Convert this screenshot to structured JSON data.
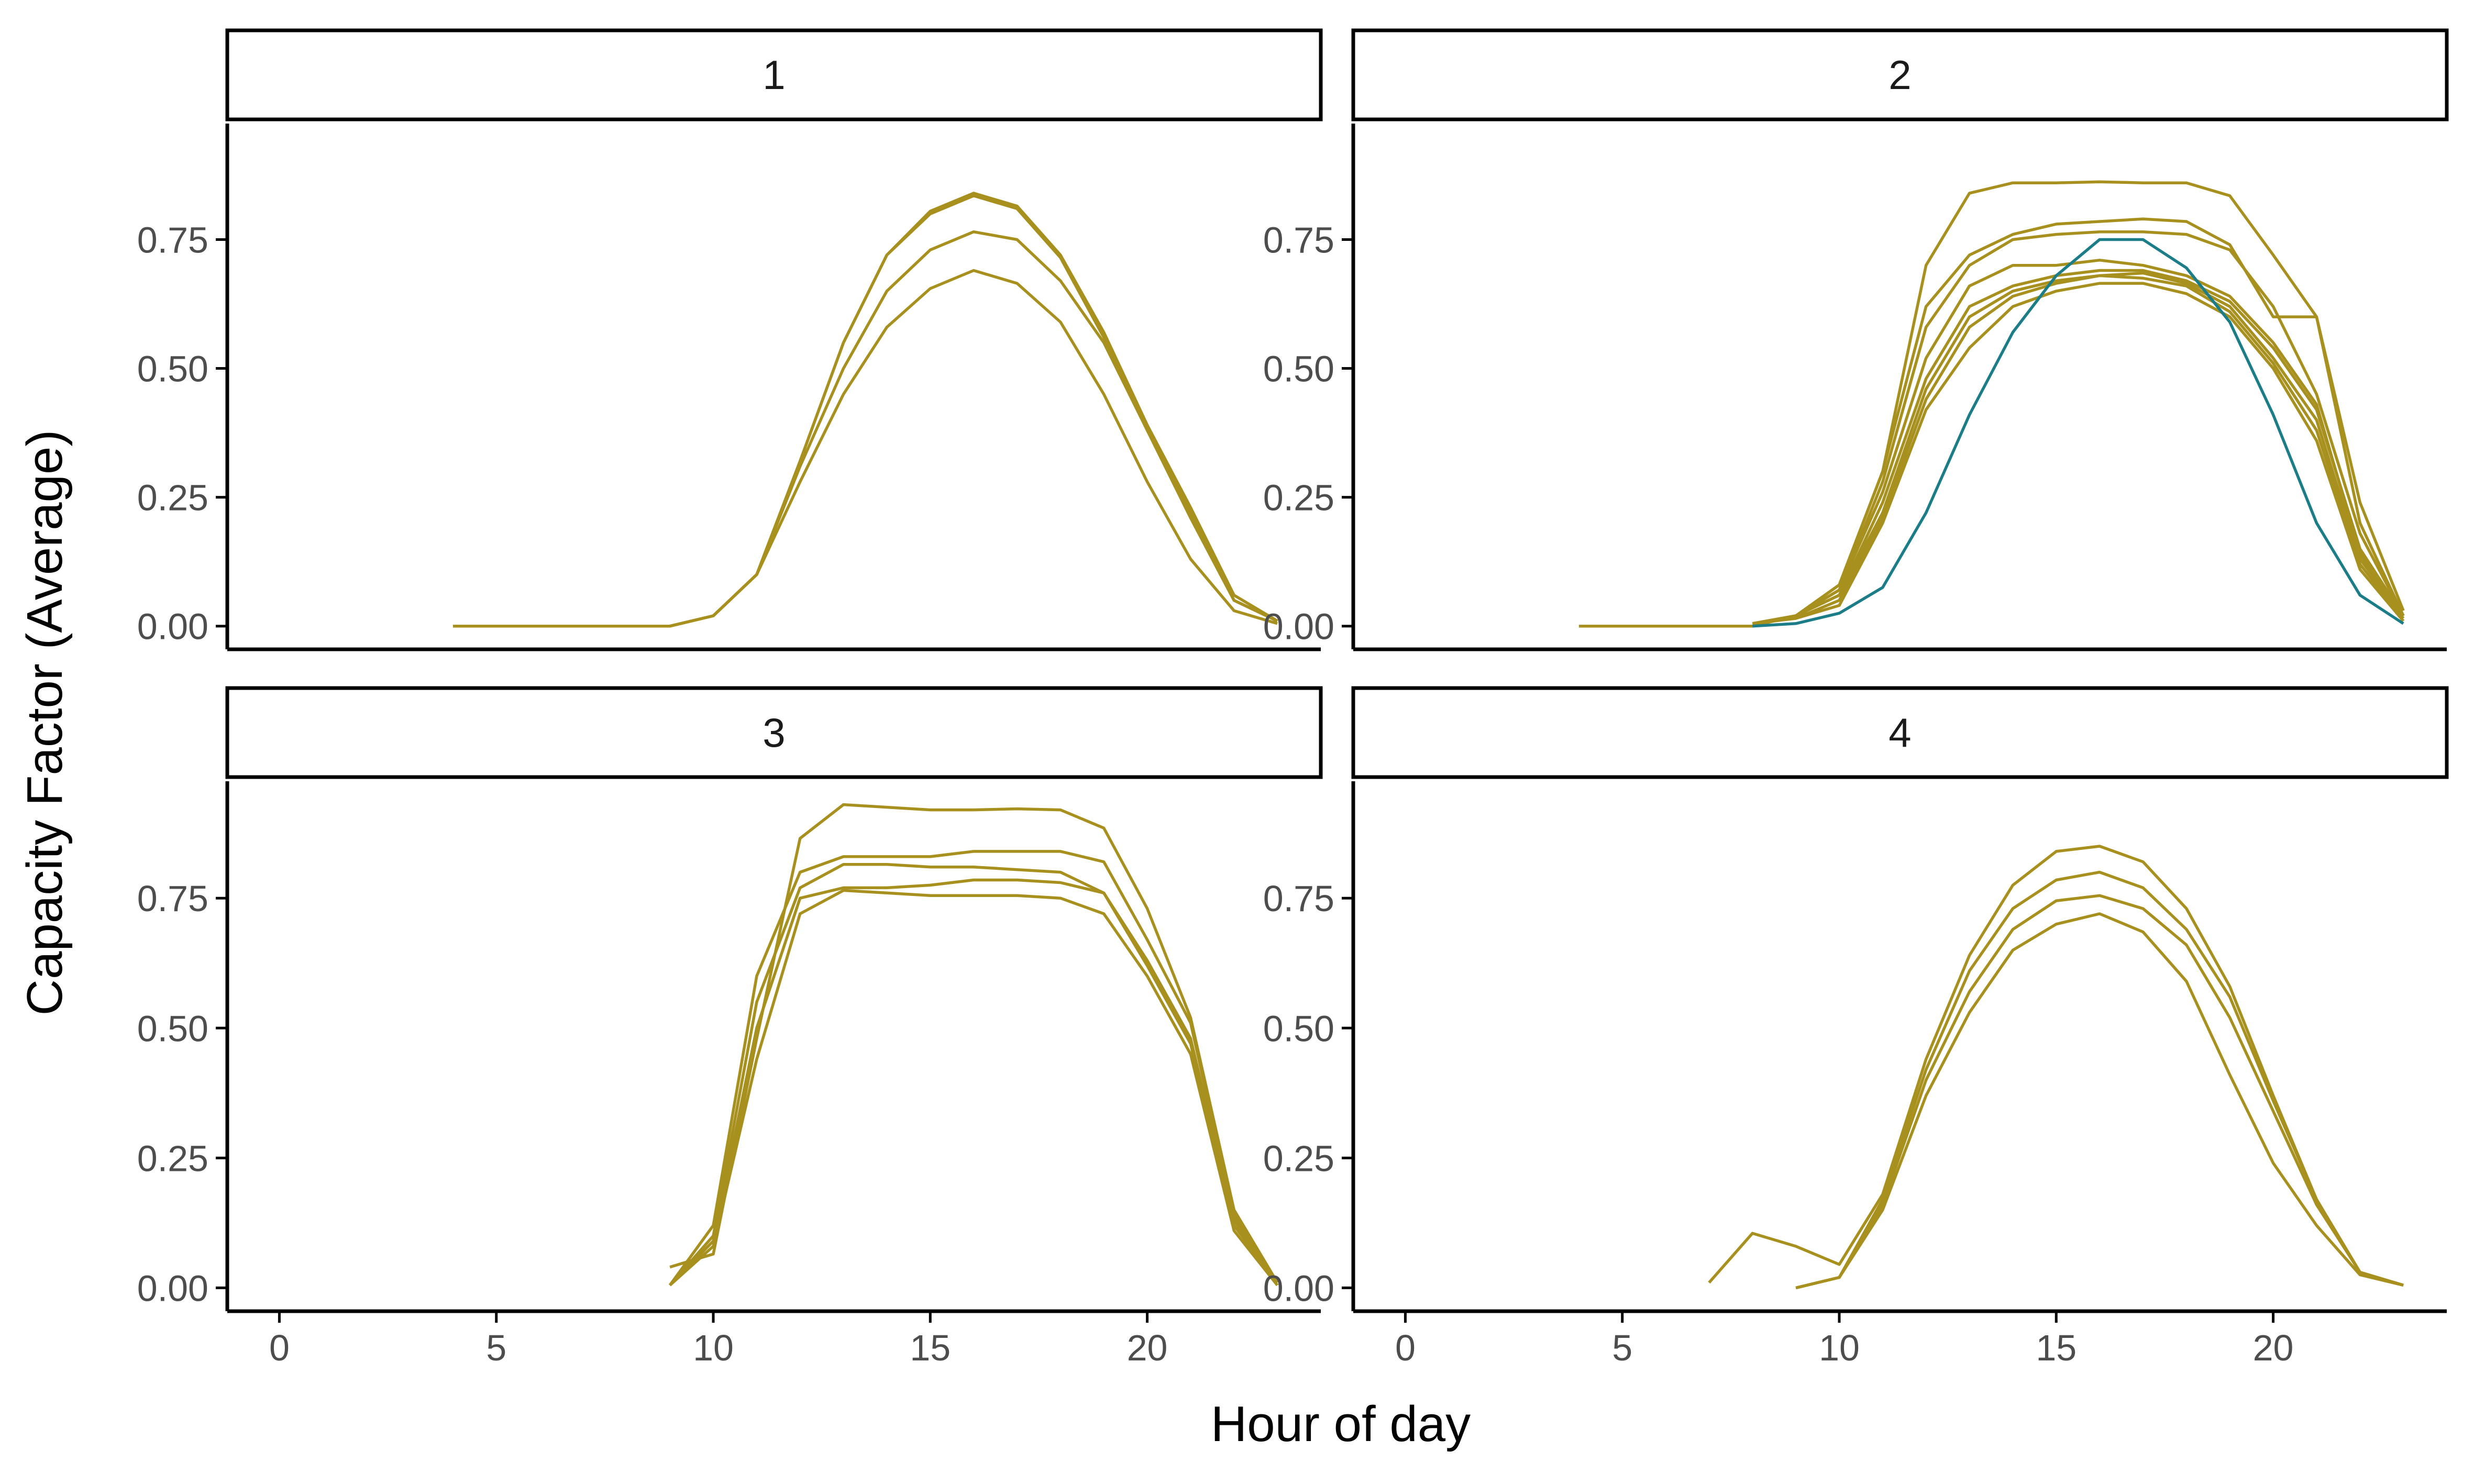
{
  "chart_data": {
    "type": "line",
    "xlabel": "Hour of day",
    "ylabel": "Capacity Factor (Average)",
    "xlim": [
      -1.2,
      24
    ],
    "ylim": [
      -0.045,
      0.975
    ],
    "x_ticks": [
      0,
      5,
      10,
      15,
      20
    ],
    "x_tick_labels": [
      "0",
      "5",
      "10",
      "15",
      "20"
    ],
    "y_ticks": [
      0,
      0.25,
      0.5,
      0.75
    ],
    "y_tick_labels": [
      "0.00",
      "0.25",
      "0.50",
      "0.75"
    ],
    "colors": {
      "gold": "#a8901e",
      "teal": "#1b7d87"
    },
    "panels": [
      {
        "label": "1",
        "series": [
          {
            "color": "gold",
            "x": [
              4,
              5,
              6,
              7,
              8,
              9,
              10,
              11,
              12,
              13,
              14,
              15,
              16,
              17,
              18,
              19,
              20,
              21,
              22,
              23
            ],
            "y": [
              0,
              0,
              0,
              0,
              0,
              0,
              0.02,
              0.1,
              0.32,
              0.55,
              0.72,
              0.805,
              0.84,
              0.815,
              0.72,
              0.57,
              0.39,
              0.23,
              0.06,
              0.01
            ]
          },
          {
            "color": "gold",
            "x": [
              9,
              10,
              11,
              12,
              13,
              14,
              15,
              16,
              17,
              18,
              19,
              20,
              21,
              22,
              23
            ],
            "y": [
              0,
              0.02,
              0.1,
              0.32,
              0.55,
              0.72,
              0.8,
              0.835,
              0.81,
              0.715,
              0.56,
              0.38,
              0.22,
              0.05,
              0.01
            ]
          },
          {
            "color": "gold",
            "x": [
              9,
              10,
              11,
              12,
              13,
              14,
              15,
              16,
              17,
              18,
              19,
              20,
              21,
              22,
              23
            ],
            "y": [
              0,
              0.02,
              0.1,
              0.31,
              0.5,
              0.65,
              0.73,
              0.765,
              0.75,
              0.67,
              0.55,
              0.38,
              0.21,
              0.05,
              0.01
            ]
          },
          {
            "color": "gold",
            "x": [
              9,
              10,
              11,
              12,
              13,
              14,
              15,
              16,
              17,
              18,
              19,
              20,
              21,
              22,
              23
            ],
            "y": [
              0,
              0.02,
              0.1,
              0.28,
              0.45,
              0.58,
              0.655,
              0.69,
              0.665,
              0.59,
              0.45,
              0.28,
              0.13,
              0.03,
              0.005
            ]
          }
        ]
      },
      {
        "label": "2",
        "series": [
          {
            "color": "gold",
            "x": [
              4,
              5,
              6,
              7,
              8,
              9,
              10,
              11,
              12,
              13,
              14,
              15,
              16,
              17,
              18,
              19,
              20,
              21,
              22,
              23
            ],
            "y": [
              0,
              0,
              0,
              0,
              0,
              0.02,
              0.08,
              0.3,
              0.7,
              0.84,
              0.86,
              0.86,
              0.862,
              0.86,
              0.86,
              0.835,
              0.72,
              0.6,
              0.24,
              0.03
            ]
          },
          {
            "color": "gold",
            "x": [
              8,
              9,
              10,
              11,
              12,
              13,
              14,
              15,
              16,
              17,
              18,
              19,
              20,
              21,
              22,
              23
            ],
            "y": [
              0.005,
              0.02,
              0.08,
              0.3,
              0.62,
              0.72,
              0.76,
              0.78,
              0.785,
              0.79,
              0.785,
              0.74,
              0.6,
              0.6,
              0.2,
              0.02
            ]
          },
          {
            "color": "gold",
            "x": [
              8,
              9,
              10,
              11,
              12,
              13,
              14,
              15,
              16,
              17,
              18,
              19,
              20,
              21,
              22,
              23
            ],
            "y": [
              0.005,
              0.02,
              0.07,
              0.28,
              0.58,
              0.7,
              0.75,
              0.76,
              0.765,
              0.765,
              0.76,
              0.73,
              0.62,
              0.45,
              0.18,
              0.02
            ]
          },
          {
            "color": "gold",
            "x": [
              8,
              9,
              10,
              11,
              12,
              13,
              14,
              15,
              16,
              17,
              18,
              19,
              20,
              21,
              22,
              23
            ],
            "y": [
              0.005,
              0.02,
              0.07,
              0.26,
              0.52,
              0.66,
              0.7,
              0.7,
              0.71,
              0.7,
              0.68,
              0.64,
              0.55,
              0.43,
              0.14,
              0.02
            ]
          },
          {
            "color": "gold",
            "x": [
              8,
              9,
              10,
              11,
              12,
              13,
              14,
              15,
              16,
              17,
              18,
              19,
              20,
              21,
              22,
              23
            ],
            "y": [
              0.005,
              0.02,
              0.06,
              0.24,
              0.48,
              0.62,
              0.66,
              0.68,
              0.69,
              0.69,
              0.67,
              0.63,
              0.54,
              0.42,
              0.15,
              0.02
            ]
          },
          {
            "color": "gold",
            "x": [
              8,
              9,
              10,
              11,
              12,
              13,
              14,
              15,
              16,
              17,
              18,
              19,
              20,
              21,
              22,
              23
            ],
            "y": [
              0.005,
              0.02,
              0.06,
              0.22,
              0.46,
              0.6,
              0.65,
              0.67,
              0.68,
              0.685,
              0.665,
              0.62,
              0.52,
              0.4,
              0.13,
              0.02
            ]
          },
          {
            "color": "gold",
            "x": [
              8,
              9,
              10,
              11,
              12,
              13,
              14,
              15,
              16,
              17,
              18,
              19,
              20,
              21,
              22,
              23
            ],
            "y": [
              0.005,
              0.015,
              0.05,
              0.21,
              0.44,
              0.58,
              0.64,
              0.665,
              0.68,
              0.675,
              0.66,
              0.61,
              0.51,
              0.38,
              0.12,
              0.015
            ]
          },
          {
            "color": "gold",
            "x": [
              8,
              9,
              10,
              11,
              12,
              13,
              14,
              15,
              16,
              17,
              18,
              19,
              20,
              21,
              22,
              23
            ],
            "y": [
              0.005,
              0.015,
              0.04,
              0.2,
              0.42,
              0.54,
              0.62,
              0.65,
              0.665,
              0.665,
              0.645,
              0.6,
              0.5,
              0.36,
              0.11,
              0.01
            ]
          },
          {
            "color": "teal",
            "x": [
              8,
              9,
              10,
              11,
              12,
              13,
              14,
              15,
              16,
              17,
              18,
              19,
              20,
              21,
              22,
              23
            ],
            "y": [
              0,
              0.005,
              0.025,
              0.075,
              0.22,
              0.41,
              0.57,
              0.68,
              0.75,
              0.75,
              0.695,
              0.59,
              0.41,
              0.2,
              0.06,
              0.005
            ]
          }
        ]
      },
      {
        "label": "3",
        "series": [
          {
            "color": "gold",
            "x": [
              9,
              10,
              11,
              12,
              13,
              14,
              15,
              16,
              17,
              18,
              19,
              20,
              21,
              22,
              23
            ],
            "y": [
              0.04,
              0.065,
              0.48,
              0.865,
              0.93,
              0.925,
              0.92,
              0.92,
              0.922,
              0.92,
              0.885,
              0.73,
              0.52,
              0.15,
              0.01
            ]
          },
          {
            "color": "gold",
            "x": [
              9,
              10,
              11,
              12,
              13,
              14,
              15,
              16,
              17,
              18,
              19,
              20,
              21,
              22,
              23
            ],
            "y": [
              0.005,
              0.12,
              0.6,
              0.8,
              0.83,
              0.83,
              0.83,
              0.84,
              0.84,
              0.84,
              0.82,
              0.67,
              0.51,
              0.14,
              0.01
            ]
          },
          {
            "color": "gold",
            "x": [
              9,
              10,
              11,
              12,
              13,
              14,
              15,
              16,
              17,
              18,
              19,
              20,
              21,
              22,
              23
            ],
            "y": [
              0.005,
              0.1,
              0.55,
              0.77,
              0.815,
              0.815,
              0.81,
              0.81,
              0.805,
              0.8,
              0.76,
              0.63,
              0.48,
              0.13,
              0.01
            ]
          },
          {
            "color": "gold",
            "x": [
              9,
              10,
              11,
              12,
              13,
              14,
              15,
              16,
              17,
              18,
              19,
              20,
              21,
              22,
              23
            ],
            "y": [
              0.005,
              0.09,
              0.5,
              0.75,
              0.77,
              0.77,
              0.775,
              0.785,
              0.785,
              0.78,
              0.76,
              0.62,
              0.47,
              0.12,
              0.01
            ]
          },
          {
            "color": "gold",
            "x": [
              9,
              10,
              11,
              12,
              13,
              14,
              15,
              16,
              17,
              18,
              19,
              20,
              21,
              22,
              23
            ],
            "y": [
              0.005,
              0.08,
              0.44,
              0.72,
              0.765,
              0.76,
              0.755,
              0.755,
              0.755,
              0.75,
              0.72,
              0.6,
              0.45,
              0.11,
              0.005
            ]
          }
        ]
      },
      {
        "label": "4",
        "series": [
          {
            "color": "gold",
            "x": [
              7,
              8,
              9,
              10,
              11,
              12,
              13,
              14,
              15,
              16,
              17,
              18,
              19,
              20,
              21,
              22,
              23
            ],
            "y": [
              0.01,
              0.105,
              0.08,
              0.045,
              0.18,
              0.44,
              0.64,
              0.775,
              0.84,
              0.85,
              0.82,
              0.73,
              0.58,
              0.37,
              0.17,
              0.03,
              0.005
            ]
          },
          {
            "color": "gold",
            "x": [
              9,
              10,
              11,
              12,
              13,
              14,
              15,
              16,
              17,
              18,
              19,
              20,
              21,
              22,
              23
            ],
            "y": [
              0,
              0.02,
              0.17,
              0.42,
              0.61,
              0.73,
              0.785,
              0.8,
              0.77,
              0.69,
              0.56,
              0.36,
              0.17,
              0.03,
              0.005
            ]
          },
          {
            "color": "gold",
            "x": [
              9,
              10,
              11,
              12,
              13,
              14,
              15,
              16,
              17,
              18,
              19,
              20,
              21,
              22,
              23
            ],
            "y": [
              0,
              0.02,
              0.16,
              0.4,
              0.57,
              0.69,
              0.745,
              0.755,
              0.73,
              0.66,
              0.52,
              0.34,
              0.16,
              0.03,
              0.005
            ]
          },
          {
            "color": "gold",
            "x": [
              9,
              10,
              11,
              12,
              13,
              14,
              15,
              16,
              17,
              18,
              19,
              20,
              21,
              22,
              23
            ],
            "y": [
              0,
              0.02,
              0.15,
              0.37,
              0.53,
              0.65,
              0.7,
              0.72,
              0.685,
              0.59,
              0.41,
              0.24,
              0.12,
              0.025,
              0.005
            ]
          }
        ]
      }
    ]
  }
}
